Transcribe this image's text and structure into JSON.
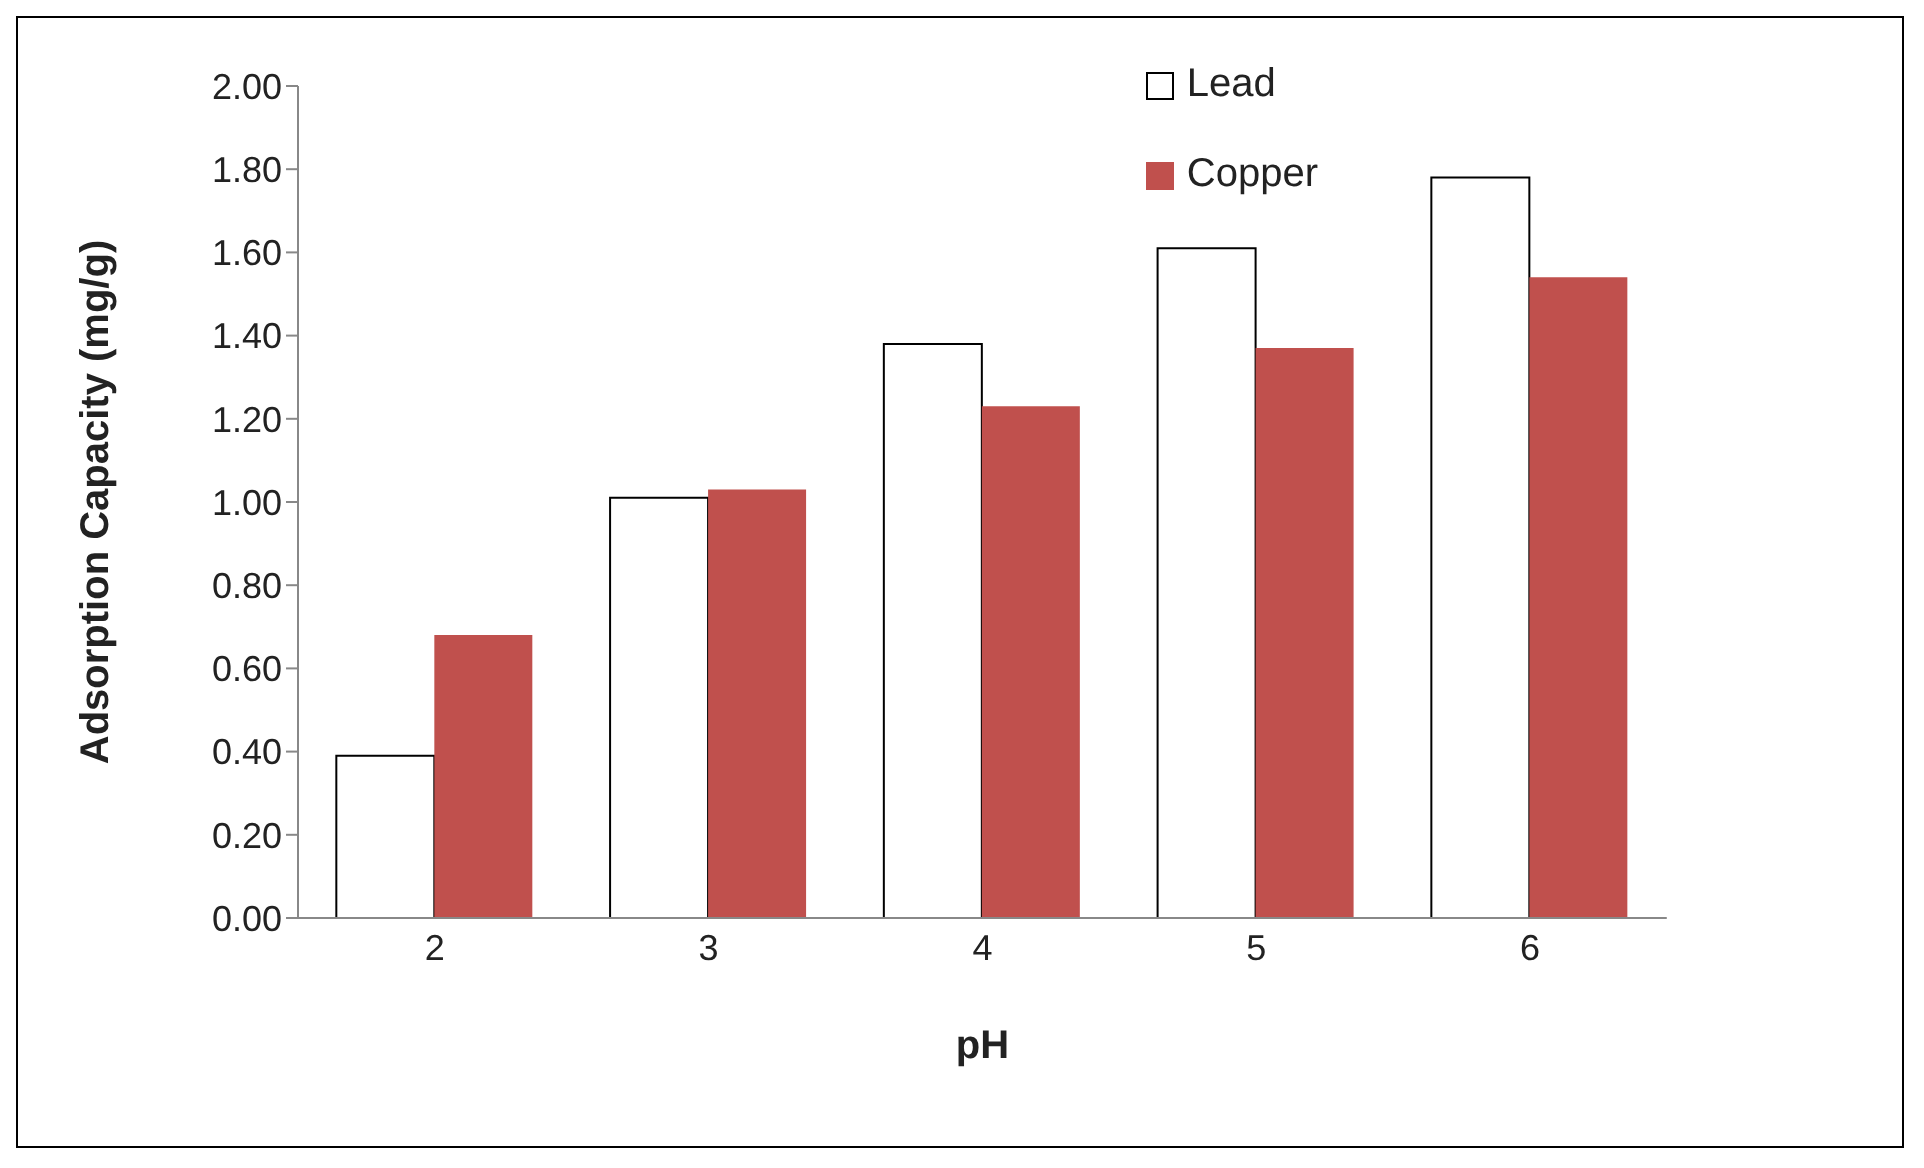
{
  "chart_data": {
    "type": "bar",
    "xlabel": "pH",
    "ylabel": "Adsorption Capacity (mg/g)",
    "categories": [
      "2",
      "3",
      "4",
      "5",
      "6"
    ],
    "series": [
      {
        "name": "Lead",
        "color": "#ffffff",
        "values": [
          0.39,
          1.01,
          1.38,
          1.61,
          1.78
        ]
      },
      {
        "name": "Copper",
        "color": "#c0504d",
        "values": [
          0.68,
          1.03,
          1.23,
          1.37,
          1.54
        ]
      }
    ],
    "ylim": [
      0,
      2
    ],
    "yticks": [
      {
        "value": 0,
        "label": "0.00"
      },
      {
        "value": 0.2,
        "label": "0.20"
      },
      {
        "value": 0.4,
        "label": "0.40"
      },
      {
        "value": 0.6,
        "label": "0.60"
      },
      {
        "value": 0.8,
        "label": "0.80"
      },
      {
        "value": 1,
        "label": "1.00"
      },
      {
        "value": 1.2,
        "label": "1.20"
      },
      {
        "value": 1.4,
        "label": "1.40"
      },
      {
        "value": 1.6,
        "label": "1.60"
      },
      {
        "value": 1.8,
        "label": "1.80"
      },
      {
        "value": 2,
        "label": "2.00"
      }
    ],
    "grid": false,
    "legend": "top right"
  }
}
